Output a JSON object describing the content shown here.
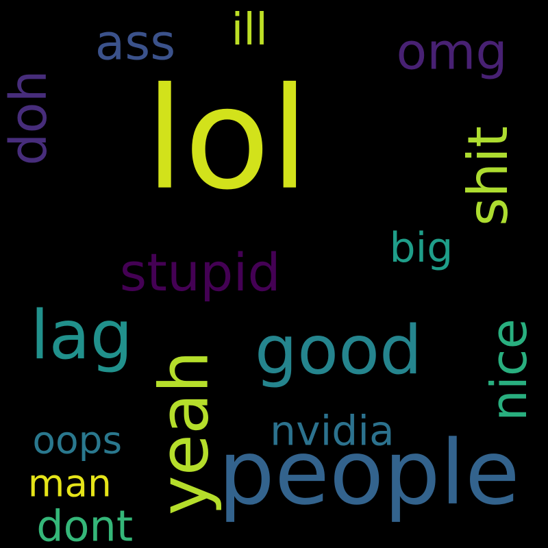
{
  "words": [
    {
      "id": "lol",
      "text": "lol",
      "color": "#d2e21b",
      "rotated": false
    },
    {
      "id": "people",
      "text": "people",
      "color": "#33638d",
      "rotated": false
    },
    {
      "id": "good",
      "text": "good",
      "color": "#25858e",
      "rotated": false
    },
    {
      "id": "stupid",
      "text": "stupid",
      "color": "#440154",
      "rotated": false
    },
    {
      "id": "shit",
      "text": "shit",
      "color": "#addc30",
      "rotated": true
    },
    {
      "id": "yeah",
      "text": "yeah",
      "color": "#b5de2b",
      "rotated": true
    },
    {
      "id": "ass",
      "text": "ass",
      "color": "#3b528b",
      "rotated": false
    },
    {
      "id": "doh",
      "text": "doh",
      "color": "#472d7b",
      "rotated": true
    },
    {
      "id": "omg",
      "text": "omg",
      "color": "#482173",
      "rotated": false
    },
    {
      "id": "nice",
      "text": "nice",
      "color": "#29af7f",
      "rotated": true
    },
    {
      "id": "lag",
      "text": "lag",
      "color": "#21918c",
      "rotated": false
    },
    {
      "id": "nvidia",
      "text": "nvidia",
      "color": "#2c728e",
      "rotated": false
    },
    {
      "id": "oops",
      "text": "oops",
      "color": "#2a788e",
      "rotated": false
    },
    {
      "id": "man",
      "text": "man",
      "color": "#e5e419",
      "rotated": false
    },
    {
      "id": "dont",
      "text": "dont",
      "color": "#35b779",
      "rotated": false
    },
    {
      "id": "ill",
      "text": "ill",
      "color": "#bddf26",
      "rotated": false
    },
    {
      "id": "big",
      "text": "big",
      "color": "#1f9e89",
      "rotated": false
    }
  ]
}
